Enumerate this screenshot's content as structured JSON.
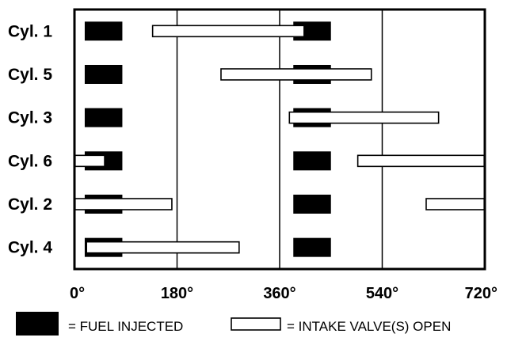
{
  "chart_data": {
    "type": "timing-diagram",
    "x_range": [
      0,
      720
    ],
    "x_ticks": [
      {
        "value": 0,
        "label": "0°"
      },
      {
        "value": 180,
        "label": "180°"
      },
      {
        "value": 360,
        "label": "360°"
      },
      {
        "value": 540,
        "label": "540°"
      },
      {
        "value": 720,
        "label": "720°"
      }
    ],
    "vertical_gridlines": [
      180,
      360,
      540
    ],
    "rows": [
      {
        "label": "Cyl. 1",
        "fuel": [
          [
            18,
            84
          ],
          [
            384,
            450
          ]
        ],
        "intake": [
          [
            136,
            404
          ]
        ]
      },
      {
        "label": "Cyl. 5",
        "fuel": [
          [
            18,
            84
          ],
          [
            384,
            450
          ]
        ],
        "intake": [
          [
            256,
            522
          ]
        ]
      },
      {
        "label": "Cyl. 3",
        "fuel": [
          [
            18,
            84
          ],
          [
            384,
            450
          ]
        ],
        "intake": [
          [
            376,
            640
          ]
        ]
      },
      {
        "label": "Cyl. 6",
        "fuel": [
          [
            18,
            84
          ],
          [
            384,
            450
          ]
        ],
        "intake": [
          [
            0,
            54
          ],
          [
            496,
            720
          ]
        ]
      },
      {
        "label": "Cyl. 2",
        "fuel": [
          [
            18,
            84
          ],
          [
            384,
            450
          ]
        ],
        "intake": [
          [
            0,
            172
          ],
          [
            616,
            720
          ]
        ]
      },
      {
        "label": "Cyl. 4",
        "fuel": [
          [
            18,
            84
          ],
          [
            384,
            450
          ]
        ],
        "intake": [
          [
            20,
            290
          ]
        ]
      }
    ],
    "legend": [
      {
        "key": "fuel",
        "label": "= FUEL INJECTED"
      },
      {
        "key": "intake",
        "label": "= INTAKE VALVE(S) OPEN"
      }
    ],
    "legend_placement": "bottom"
  }
}
